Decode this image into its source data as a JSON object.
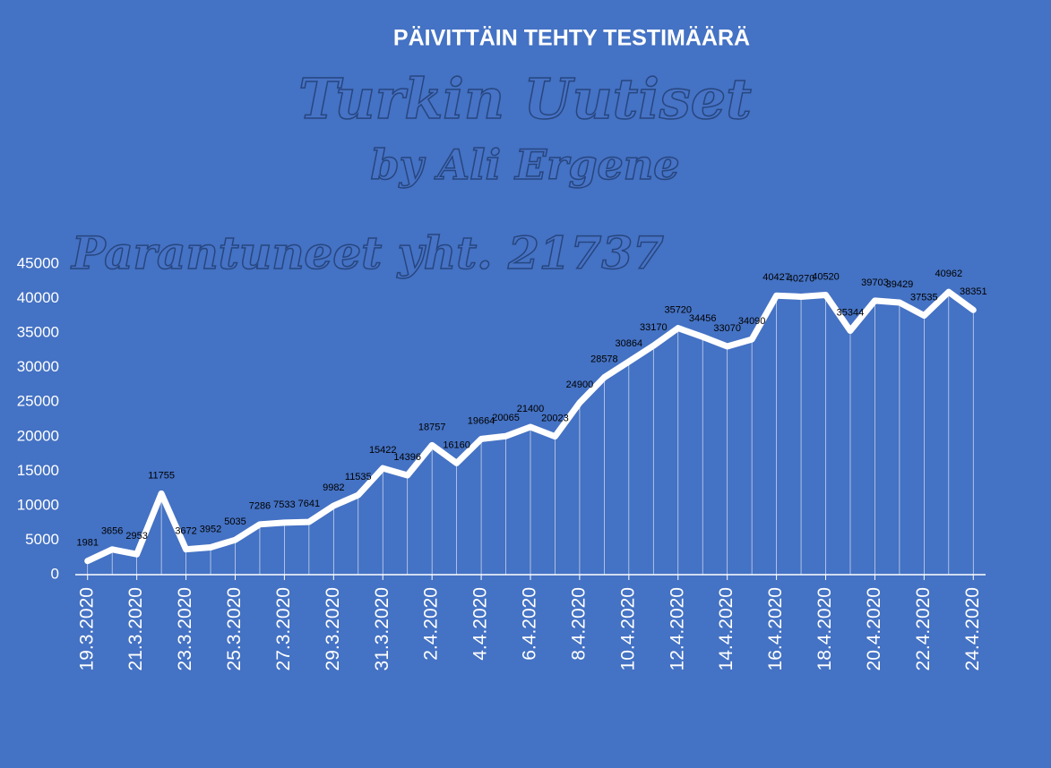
{
  "chart_data": {
    "type": "line",
    "title": "PÄIVITTÄIN TEHTY TESTIMÄÄRÄ",
    "annotations": [
      "Turkin Uutiset",
      "by Ali Ergene",
      "Parantuneet yht. 21737"
    ],
    "categories": [
      "19.3.2020",
      null,
      "21.3.2020",
      null,
      "23.3.2020",
      null,
      "25.3.2020",
      null,
      "27.3.2020",
      null,
      "29.3.2020",
      null,
      "31.3.2020",
      null,
      "2.4.2020",
      null,
      "4.4.2020",
      null,
      "6.4.2020",
      null,
      "8.4.2020",
      null,
      "10.4.2020",
      null,
      "12.4.2020",
      null,
      "14.4.2020",
      null,
      "16.4.2020",
      null,
      "18.4.2020",
      null,
      "20.4.2020",
      null,
      "22.4.2020",
      null,
      "24.4.2020"
    ],
    "values": [
      1981,
      3656,
      2953,
      11755,
      3672,
      3952,
      5035,
      7286,
      7533,
      7641,
      9982,
      11535,
      15422,
      14396,
      18757,
      16160,
      19664,
      20065,
      21400,
      20023,
      24900,
      28578,
      30864,
      33170,
      35720,
      34456,
      33070,
      34090,
      40427,
      40270,
      40520,
      35344,
      39703,
      39429,
      37535,
      40962,
      38351
    ],
    "color": "#ffffff",
    "ylim": [
      0,
      45000
    ],
    "yticks": [
      0,
      5000,
      10000,
      15000,
      20000,
      25000,
      30000,
      35000,
      40000,
      45000
    ],
    "grid": false
  }
}
